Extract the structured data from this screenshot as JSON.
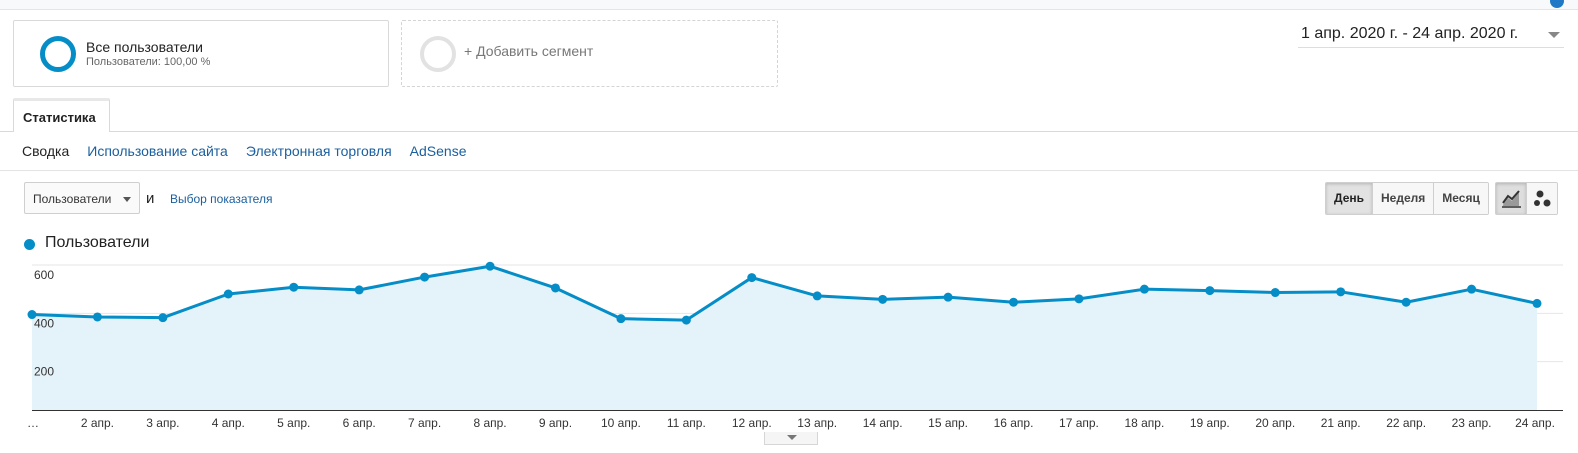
{
  "segments": {
    "active": {
      "title": "Все пользователи",
      "subtitle": "Пользователи: 100,00 %",
      "ring_color": "#058dc7"
    },
    "add_label": "+ Добавить сегмент"
  },
  "date_range": {
    "label": "1 апр. 2020 г. - 24 апр. 2020 г."
  },
  "tabs": [
    {
      "label": "Статистика",
      "active": true
    }
  ],
  "subnav": [
    {
      "label": "Сводка",
      "current": true
    },
    {
      "label": "Использование сайта",
      "current": false
    },
    {
      "label": "Электронная торговля",
      "current": false
    },
    {
      "label": "AdSense",
      "current": false
    }
  ],
  "controls": {
    "metric_select": "Пользователи",
    "and_label": "и",
    "choose_metric": "Выбор показателя",
    "periods": [
      {
        "label": "День",
        "active": true
      },
      {
        "label": "Неделя",
        "active": false
      },
      {
        "label": "Месяц",
        "active": false
      }
    ],
    "chart_types": [
      {
        "icon": "line-chart-icon",
        "active": true
      },
      {
        "icon": "motion-chart-icon",
        "active": false
      }
    ]
  },
  "legend": {
    "label": "Пользователи",
    "color": "#058dc7"
  },
  "chart_data": {
    "type": "area",
    "title": "",
    "xlabel": "",
    "ylabel": "",
    "x": [
      "…",
      "2 апр.",
      "3 апр.",
      "4 апр.",
      "5 апр.",
      "6 апр.",
      "7 апр.",
      "8 апр.",
      "9 апр.",
      "10 апр.",
      "11 апр.",
      "12 апр.",
      "13 апр.",
      "14 апр.",
      "15 апр.",
      "16 апр.",
      "17 апр.",
      "18 апр.",
      "19 апр.",
      "20 апр.",
      "21 апр.",
      "22 апр.",
      "23 апр.",
      "24 апр."
    ],
    "series": [
      {
        "name": "Пользователи",
        "values": [
          395,
          385,
          382,
          480,
          508,
          497,
          550,
          595,
          505,
          378,
          372,
          548,
          472,
          458,
          467,
          446,
          460,
          500,
          494,
          486,
          489,
          446,
          500,
          441
        ]
      }
    ],
    "ylim": [
      0,
      600
    ],
    "yticks": [
      200,
      400,
      600
    ],
    "grid": true,
    "line_color": "#058dc7",
    "fill_color": "#e4f2f9"
  }
}
